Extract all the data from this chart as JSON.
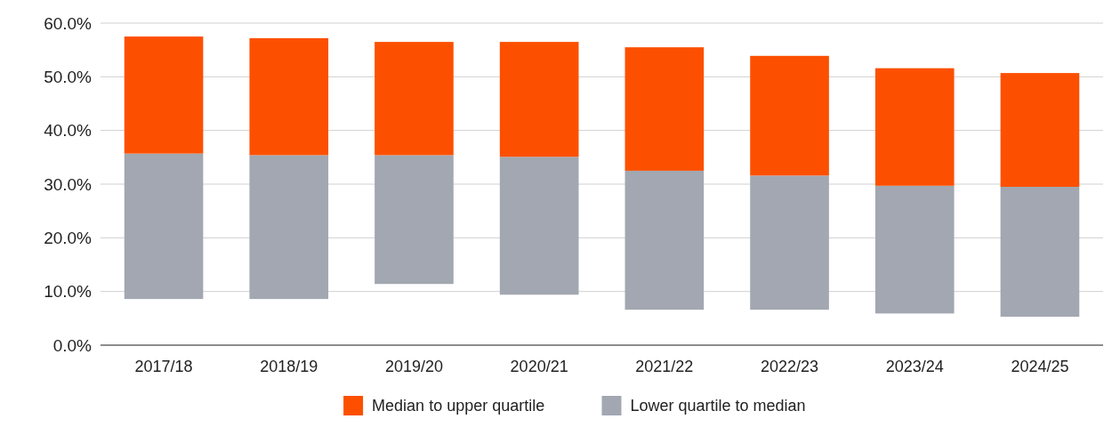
{
  "chart_data": {
    "type": "bar",
    "stacked": true,
    "categories": [
      "2017/18",
      "2018/19",
      "2019/20",
      "2020/21",
      "2021/22",
      "2022/23",
      "2023/24",
      "2024/25"
    ],
    "series": [
      {
        "name": "Lower quartile to median",
        "color": "#a2a7b1",
        "base": [
          8.6,
          8.6,
          11.4,
          9.4,
          6.6,
          6.6,
          5.9,
          5.3
        ],
        "values": [
          27.1,
          26.8,
          24.0,
          25.7,
          25.9,
          25.0,
          23.8,
          24.2
        ]
      },
      {
        "name": "Median to upper quartile",
        "color": "#fc5000",
        "values": [
          21.8,
          21.8,
          21.1,
          21.4,
          23.0,
          22.3,
          21.9,
          21.2
        ]
      }
    ],
    "ylim": [
      0,
      60
    ],
    "yticks": [
      {
        "value": 0,
        "label": "0.0%"
      },
      {
        "value": 10,
        "label": "10.0%"
      },
      {
        "value": 20,
        "label": "20.0%"
      },
      {
        "value": 30,
        "label": "30.0%"
      },
      {
        "value": 40,
        "label": "40.0%"
      },
      {
        "value": 50,
        "label": "50.0%"
      },
      {
        "value": 60,
        "label": "60.0%"
      }
    ],
    "grid": "y",
    "legend": "bottom"
  }
}
